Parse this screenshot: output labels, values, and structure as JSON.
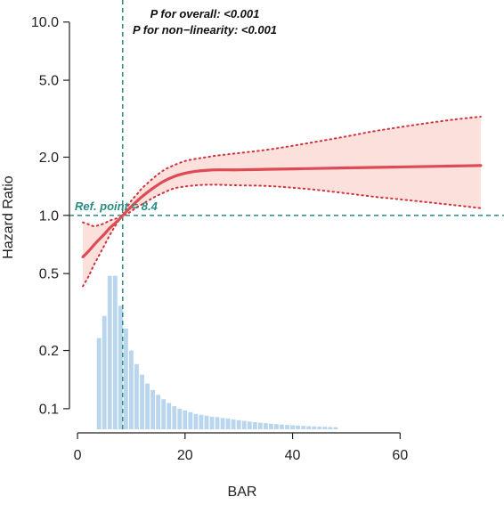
{
  "chart_data": {
    "type": "line",
    "xlabel": "BAR",
    "ylabel": "Hazard Ratio",
    "y_scale": "log",
    "xlim": [
      -1.5,
      78
    ],
    "ylim": [
      0.075,
      12.2
    ],
    "x_ticks": [
      0,
      20,
      40,
      60
    ],
    "x_tick_labels": [
      "0",
      "20",
      "40",
      "60"
    ],
    "y_ticks": [
      0.1,
      0.2,
      0.5,
      1.0,
      2.0,
      5.0,
      10.0
    ],
    "y_tick_labels": [
      "0.1",
      "0.2",
      "0.5",
      "1.0",
      "2.0",
      "5.0",
      "10.0"
    ],
    "annotations": [
      "P for overall: <0.001",
      "P for non−linearity: <0.001"
    ],
    "reference": {
      "x": 8.4,
      "y": 1.0,
      "label": "Ref. point = 8.4"
    },
    "colors": {
      "curve": "#dd4b56",
      "ci_fill": "#fbe0dc",
      "ci_line": "#d0323c",
      "ref_line": "#2a8c80",
      "histogram": "#b9d6ee",
      "axis": "#222222"
    },
    "series": [
      {
        "x": [
          1,
          2,
          3,
          4,
          5,
          6,
          7,
          8,
          8.4,
          9,
          10,
          11,
          12,
          14,
          16,
          18,
          20,
          22,
          24,
          26,
          30,
          35,
          40,
          45,
          50,
          55,
          60,
          65,
          70,
          75
        ],
        "y": [
          0.61,
          0.65,
          0.7,
          0.75,
          0.8,
          0.86,
          0.91,
          0.97,
          1.0,
          1.04,
          1.11,
          1.18,
          1.25,
          1.38,
          1.5,
          1.59,
          1.65,
          1.69,
          1.71,
          1.72,
          1.72,
          1.73,
          1.74,
          1.75,
          1.76,
          1.77,
          1.78,
          1.79,
          1.8,
          1.81
        ],
        "lower": [
          0.43,
          0.48,
          0.55,
          0.62,
          0.7,
          0.79,
          0.88,
          0.97,
          1.0,
          1.01,
          1.05,
          1.1,
          1.14,
          1.23,
          1.31,
          1.38,
          1.41,
          1.43,
          1.44,
          1.44,
          1.43,
          1.42,
          1.39,
          1.35,
          1.3,
          1.25,
          1.21,
          1.17,
          1.13,
          1.09
        ],
        "upper": [
          0.92,
          0.9,
          0.88,
          0.89,
          0.91,
          0.94,
          0.96,
          0.98,
          1.0,
          1.08,
          1.19,
          1.28,
          1.38,
          1.55,
          1.71,
          1.82,
          1.91,
          1.96,
          2.0,
          2.04,
          2.1,
          2.18,
          2.29,
          2.42,
          2.56,
          2.72,
          2.86,
          3.0,
          3.13,
          3.24
        ]
      }
    ],
    "histogram": {
      "x": [
        4,
        5,
        6,
        7,
        8,
        9,
        10,
        11,
        12,
        13,
        14,
        15,
        16,
        17,
        18,
        19,
        20,
        21,
        22,
        23,
        24,
        25,
        26,
        27,
        28,
        29,
        30,
        31,
        32,
        33,
        34,
        35,
        36,
        37,
        38,
        39,
        40,
        41,
        42,
        43,
        44,
        45,
        46,
        47,
        48
      ],
      "y": [
        0.232,
        0.302,
        0.487,
        0.487,
        0.341,
        0.26,
        0.2,
        0.17,
        0.15,
        0.135,
        0.125,
        0.118,
        0.112,
        0.107,
        0.103,
        0.1,
        0.098,
        0.096,
        0.094,
        0.093,
        0.092,
        0.091,
        0.0905,
        0.0895,
        0.089,
        0.088,
        0.0872,
        0.0865,
        0.0858,
        0.0852,
        0.0846,
        0.0841,
        0.0836,
        0.0832,
        0.0828,
        0.0824,
        0.0821,
        0.0818,
        0.0815,
        0.0812,
        0.081,
        0.0808,
        0.0806,
        0.0804,
        0.0803
      ]
    }
  }
}
